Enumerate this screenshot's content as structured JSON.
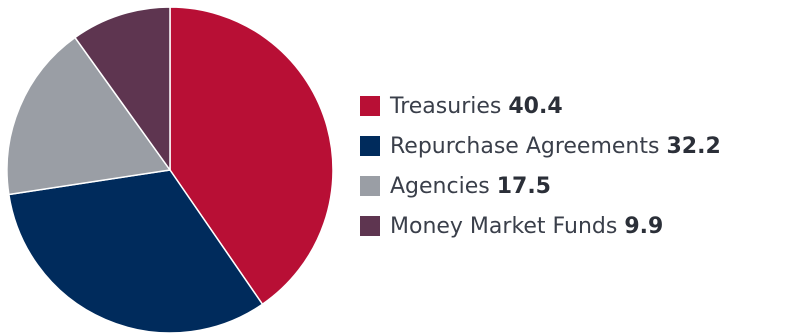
{
  "chart_data": {
    "type": "pie",
    "slices": [
      {
        "label": "Treasuries",
        "value": 40.4,
        "color": "#b80f35"
      },
      {
        "label": "Repurchase Agreements",
        "value": 32.2,
        "color": "#002b5c"
      },
      {
        "label": "Agencies",
        "value": 17.5,
        "color": "#9a9ea5"
      },
      {
        "label": "Money Market Funds",
        "value": 9.9,
        "color": "#5e3550"
      }
    ],
    "start_angle_deg": 0,
    "direction": "clockwise",
    "legend_position": "right"
  }
}
